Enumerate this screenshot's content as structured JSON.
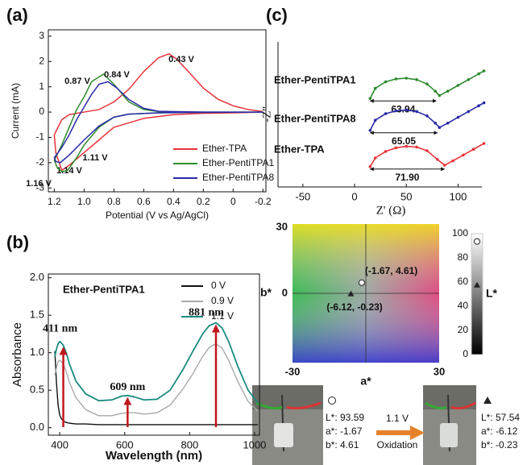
{
  "chart_data": [
    {
      "type": "line",
      "panel_label": "(a)",
      "x_label": "Potential (V vs Ag/AgCl)",
      "y_label": "Current (mA)",
      "xlim": [
        1.24,
        -0.22
      ],
      "ylim": [
        -3.15,
        3.25
      ],
      "xticks": [
        1.2,
        {
          "value": 1,
          "label": "1.0"
        },
        0.8,
        0.6,
        0.4,
        0.2,
        0,
        -0.2
      ],
      "yticks": [
        -3,
        -2,
        -1,
        0,
        1,
        2,
        3
      ],
      "legend": "lower-right",
      "series": [
        {
          "name": "Ether-TPA",
          "color": "#e8333a",
          "peak_labels": [
            "0.43 V",
            "1.14 V"
          ],
          "x": [
            -0.2,
            -0.1,
            0,
            0.1,
            0.2,
            0.3,
            0.38,
            0.43,
            0.5,
            0.6,
            0.7,
            0.8,
            0.9,
            1.0,
            1.1,
            1.15,
            1.2,
            1.19,
            1.15,
            1.1,
            1.0,
            0.9,
            0.8,
            0.6,
            0.4,
            0.2,
            0,
            -0.2
          ],
          "values": [
            0.02,
            0.1,
            0.25,
            0.5,
            0.95,
            1.6,
            2.1,
            2.3,
            2.15,
            1.6,
            0.9,
            0.4,
            0.1,
            0,
            -0.1,
            -0.3,
            -0.9,
            -1.6,
            -2.3,
            -2.1,
            -1.6,
            -1.1,
            -0.6,
            -0.25,
            -0.1,
            -0.05,
            -0.03,
            0
          ]
        },
        {
          "name": "Ether-PentiTPA1",
          "color": "#2e8b2e",
          "peak_labels": [
            "0.87 V",
            "1.11 V"
          ],
          "x": [
            -0.2,
            0.2,
            0.5,
            0.6,
            0.7,
            0.8,
            0.87,
            0.95,
            1.0,
            1.05,
            1.1,
            1.15,
            1.2,
            1.18,
            1.15,
            1.11,
            1.05,
            1.0,
            0.9,
            0.8,
            0.7,
            0.5,
            0.2,
            -0.2
          ],
          "values": [
            0,
            0,
            0.02,
            0.1,
            0.4,
            1.1,
            1.5,
            1.2,
            0.6,
            0.1,
            -0.6,
            -1.3,
            -1.9,
            -2.2,
            -2.35,
            -2.3,
            -1.8,
            -1.3,
            -0.6,
            -0.2,
            -0.08,
            -0.03,
            -0.01,
            0
          ]
        },
        {
          "name": "Ether-PentiTPA8",
          "color": "#2a2aa8",
          "peak_labels": [
            "0.84 V",
            "1.16 V"
          ],
          "x": [
            -0.2,
            0.2,
            0.5,
            0.6,
            0.7,
            0.78,
            0.84,
            0.9,
            0.95,
            1.0,
            1.05,
            1.1,
            1.15,
            1.2,
            1.19,
            1.16,
            1.1,
            1.0,
            0.9,
            0.8,
            0.7,
            0.5,
            0.2,
            -0.2
          ],
          "values": [
            0,
            0,
            0.03,
            0.15,
            0.5,
            0.95,
            1.2,
            1.1,
            0.7,
            0.2,
            -0.3,
            -0.9,
            -1.4,
            -1.8,
            -1.95,
            -2.0,
            -1.7,
            -1.1,
            -0.55,
            -0.2,
            -0.08,
            -0.03,
            -0.01,
            0
          ]
        }
      ]
    },
    {
      "type": "line",
      "panel_label": "(b)",
      "x_label": "Wavelength (nm)",
      "y_label": "Absorbance",
      "sample_label": "Ether-PentiTPA1",
      "xlim": [
        365,
        1015
      ],
      "ylim": [
        -0.1,
        2.05
      ],
      "xticks": [
        400,
        600,
        800,
        1000
      ],
      "yticks": [
        {
          "value": 0,
          "label": "0.0"
        },
        0.5,
        {
          "value": 1,
          "label": "1.0"
        },
        1.5,
        {
          "value": 2,
          "label": "2.0"
        }
      ],
      "legend": "upper-right",
      "annotations": [
        {
          "value": 411,
          "label": "411 nm"
        },
        {
          "value": 609,
          "label": "609 nm"
        },
        {
          "value": 881,
          "label": "881 nm"
        }
      ],
      "annotation_color": "#c0171c",
      "x": [
        385,
        390,
        395,
        400,
        405,
        411,
        420,
        430,
        450,
        480,
        520,
        560,
        590,
        609,
        630,
        660,
        700,
        740,
        780,
        810,
        840,
        860,
        881,
        900,
        920,
        950,
        980,
        1010
      ],
      "series": [
        {
          "name": "0 V",
          "color": "#111111",
          "values": [
            1.02,
            0.6,
            0.3,
            0.17,
            0.12,
            0.09,
            0.07,
            0.06,
            0.05,
            0.05,
            0.04,
            0.04,
            0.04,
            0.04,
            0.04,
            0.04,
            0.04,
            0.04,
            0.04,
            0.04,
            0.04,
            0.04,
            0.04,
            0.04,
            0.04,
            0.04,
            0.04,
            0.04
          ]
        },
        {
          "name": "0.9 V",
          "color": "#a9a9a9",
          "values": [
            0.7,
            0.8,
            0.88,
            0.9,
            0.88,
            0.85,
            0.75,
            0.6,
            0.4,
            0.24,
            0.16,
            0.16,
            0.19,
            0.2,
            0.2,
            0.18,
            0.2,
            0.3,
            0.52,
            0.72,
            0.95,
            1.07,
            1.12,
            1.06,
            0.9,
            0.6,
            0.35,
            0.22
          ]
        },
        {
          "name": "1.1 V",
          "color": "#1a8a80",
          "values": [
            0.95,
            1.05,
            1.12,
            1.15,
            1.13,
            1.1,
            1.0,
            0.85,
            0.62,
            0.45,
            0.36,
            0.37,
            0.42,
            0.43,
            0.41,
            0.37,
            0.38,
            0.5,
            0.78,
            1.02,
            1.25,
            1.36,
            1.4,
            1.33,
            1.15,
            0.8,
            0.5,
            0.33
          ]
        }
      ]
    },
    {
      "type": "line",
      "panel_label": "(c)",
      "x_label": "Z' (Ω)",
      "y_label": "-Z''",
      "xlim": [
        -74,
        123
      ],
      "ylim": [
        0,
        100
      ],
      "xticks": [
        -50,
        0,
        50,
        100
      ],
      "series": [
        {
          "name": "Ether-PentiTPA1",
          "color": "#2e8b2e",
          "resistance": 63.94,
          "x": [
            15,
            20,
            30,
            40,
            50,
            60,
            70,
            78,
            82,
            90,
            100,
            110,
            120,
            125
          ],
          "values": [
            61,
            68,
            72.5,
            74.5,
            75,
            74,
            71,
            66,
            63,
            66,
            70,
            74,
            78,
            80
          ]
        },
        {
          "name": "Ether-PentiTPA8",
          "color": "#2a2aa8",
          "resistance": 65.05,
          "x": [
            15,
            20,
            30,
            40,
            50,
            60,
            70,
            78,
            82,
            90,
            100,
            110,
            120,
            125
          ],
          "values": [
            39,
            46,
            50.5,
            52.5,
            53,
            52,
            49,
            44,
            41,
            44,
            48,
            52,
            56,
            58
          ]
        },
        {
          "name": "Ether-TPA",
          "color": "#e8333a",
          "resistance": {
            "value": 71.9,
            "label": "71.90"
          },
          "x": [
            15,
            20,
            30,
            40,
            50,
            60,
            70,
            80,
            87,
            95,
            105,
            115,
            125
          ],
          "values": [
            14,
            20,
            24.5,
            27,
            28,
            27.5,
            25,
            19,
            15,
            18,
            22,
            26,
            30
          ]
        }
      ]
    },
    {
      "type": "scatter",
      "x_label": "a*",
      "y_label": "b*",
      "xlim": [
        -30,
        30
      ],
      "ylim": [
        -30,
        30
      ],
      "xticks": [
        -30,
        30
      ],
      "yticks": [
        0,
        30
      ],
      "points": [
        {
          "x": -1.67,
          "y": 4.61,
          "label": "(-1.67, 4.61)",
          "marker": "circle"
        },
        {
          "x": -6.12,
          "y": -0.23,
          "label": "(-6.12, -0.23)",
          "marker": "triangle"
        }
      ],
      "lightness": {
        "label": "L*",
        "ylim": [
          0,
          100
        ],
        "yticks": [
          0,
          20,
          40,
          60,
          80,
          100
        ],
        "values": [
          93.59,
          57.54
        ]
      }
    }
  ],
  "photo_panel": {
    "arrow_label": "1.1 V",
    "arrow_caption": "Oxidation",
    "samples": [
      {
        "lines": [
          "L*: 93.59",
          "a*: -1.67",
          "b*: 4.61"
        ]
      },
      {
        "lines": [
          "L*: 57.54",
          "a*: -6.12",
          "b*: -0.23"
        ]
      }
    ]
  }
}
